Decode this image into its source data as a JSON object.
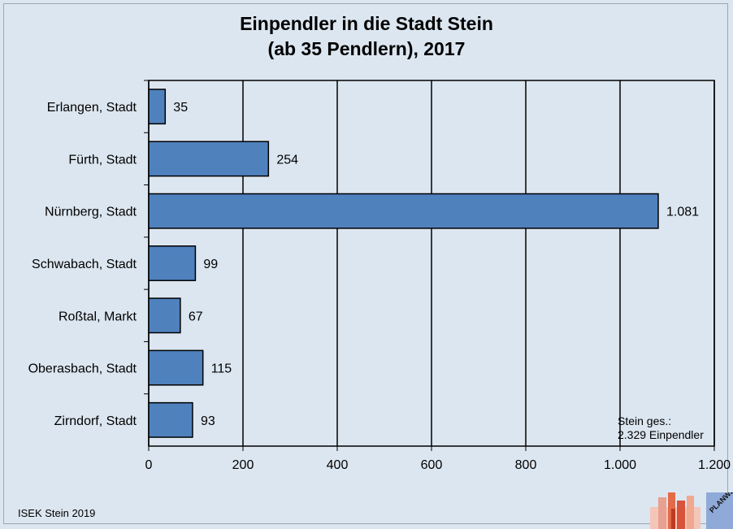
{
  "chart_data": {
    "type": "bar",
    "orientation": "horizontal",
    "title": "Einpendler in die Stadt Stein",
    "subtitle": "(ab 35 Pendlern), 2017",
    "categories": [
      "Erlangen, Stadt",
      "Fürth, Stadt",
      "Nürnberg, Stadt",
      "Schwabach, Stadt",
      "Roßtal, Markt",
      "Oberasbach, Stadt",
      "Zirndorf, Stadt"
    ],
    "values": [
      35,
      254,
      1081,
      99,
      67,
      115,
      93
    ],
    "value_labels": [
      "35",
      "254",
      "1.081",
      "99",
      "67",
      "115",
      "93"
    ],
    "xlim": [
      0,
      1200
    ],
    "x_ticks": [
      0,
      200,
      400,
      600,
      800,
      1000,
      1200
    ],
    "x_tick_labels": [
      "0",
      "200",
      "400",
      "600",
      "800",
      "1.000",
      "1.200"
    ],
    "grid": "vertical",
    "bar_color": "#4f81bd",
    "background": "#dce6f0"
  },
  "annotation": {
    "line1": "Stein ges.:",
    "line2": "2.329 Einpendler"
  },
  "footer": "ISEK Stein 2019",
  "logo_text": "PLANWERK"
}
